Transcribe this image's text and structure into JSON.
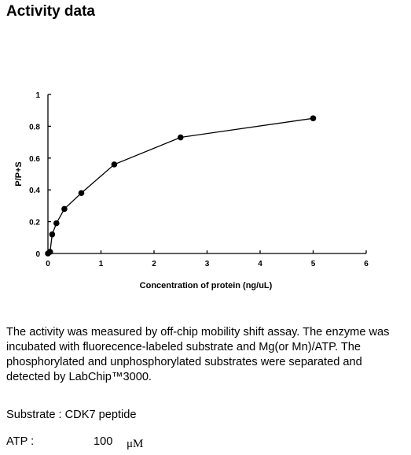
{
  "page": {
    "title": "Activity data"
  },
  "chart_data": {
    "type": "line",
    "xlabel": "Concentration of protein (ng/uL)",
    "ylabel": "P/P+S",
    "xlim": [
      0,
      6
    ],
    "ylim": [
      0,
      1
    ],
    "xticks": [
      "0",
      "1",
      "2",
      "3",
      "4",
      "5",
      "6"
    ],
    "yticks": [
      "0",
      "0.2",
      "0.4",
      "0.6",
      "0.8",
      "1"
    ],
    "grid": false,
    "series": [
      {
        "x": [
          0,
          0.04,
          0.08,
          0.16,
          0.31,
          0.63,
          1.25,
          2.5,
          5
        ],
        "y": [
          0,
          0.01,
          0.12,
          0.19,
          0.28,
          0.38,
          0.56,
          0.73,
          0.85
        ]
      }
    ]
  },
  "description": {
    "text": "The activity was measured by off-chip mobility shift assay. The enzyme was incubated with fluorecence-labeled  substrate and Mg(or Mn)/ATP. The phosphorylated and unphosphorylated substrates were separated and detected by LabChip™3000."
  },
  "conditions": {
    "substrate": "Substrate : CDK7 peptide",
    "atp_label": "ATP :",
    "atp_value": "100",
    "atp_unit": "μM"
  }
}
